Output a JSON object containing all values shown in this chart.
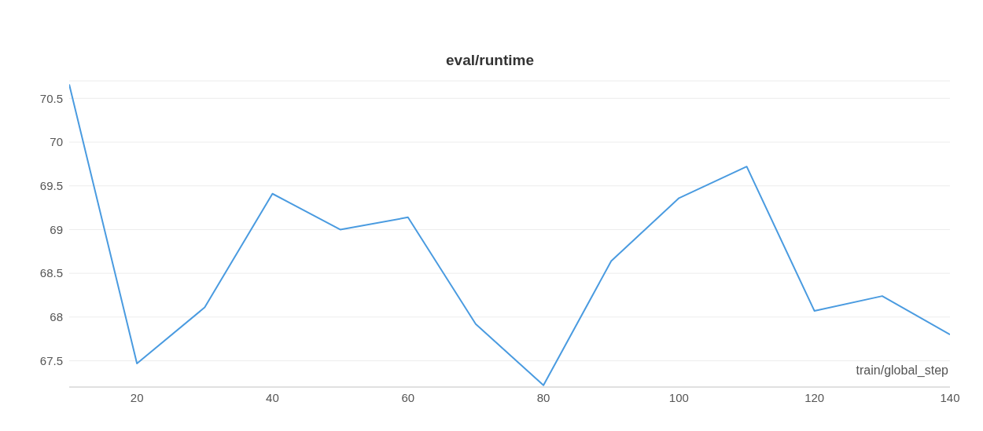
{
  "chart_data": {
    "type": "line",
    "title": "eval/runtime",
    "xlabel": "train/global_step",
    "x": [
      10,
      20,
      30,
      40,
      50,
      60,
      70,
      80,
      90,
      100,
      110,
      120,
      130,
      140
    ],
    "series": [
      {
        "color": "#4a9be0",
        "values": [
          70.66,
          67.47,
          68.11,
          69.41,
          69.0,
          69.14,
          67.92,
          67.22,
          68.64,
          69.36,
          69.72,
          68.07,
          68.24,
          67.8
        ]
      }
    ],
    "xlim": [
      10,
      140
    ],
    "xticks": [
      20,
      40,
      60,
      80,
      100,
      120,
      140
    ],
    "ylim": [
      67.2,
      70.7
    ],
    "yticks": [
      67.5,
      68,
      68.5,
      69,
      69.5,
      70,
      70.5
    ],
    "grid": "y",
    "legend": false,
    "marker": "none",
    "line_style": "solid"
  }
}
